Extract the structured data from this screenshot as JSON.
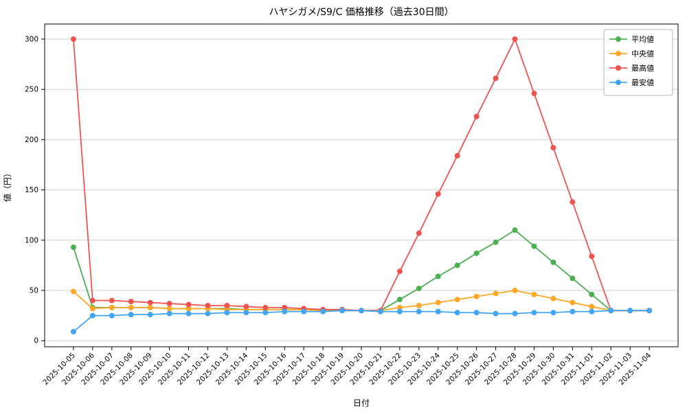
{
  "chart_data": {
    "type": "line",
    "title": "ハヤシガメ/S9/C 価格推移（過去30日間）",
    "xlabel": "日付",
    "ylabel": "値（円）",
    "x": [
      "2025-10-05",
      "2025-10-06",
      "2025-10-07",
      "2025-10-08",
      "2025-10-09",
      "2025-10-10",
      "2025-10-11",
      "2025-10-12",
      "2025-10-13",
      "2025-10-14",
      "2025-10-15",
      "2025-10-16",
      "2025-10-17",
      "2025-10-18",
      "2025-10-19",
      "2025-10-20",
      "2025-10-21",
      "2025-10-22",
      "2025-10-23",
      "2025-10-24",
      "2025-10-25",
      "2025-10-26",
      "2025-10-27",
      "2025-10-28",
      "2025-10-29",
      "2025-10-30",
      "2025-10-31",
      "2025-11-01",
      "2025-11-02",
      "2025-11-03",
      "2025-11-04"
    ],
    "ylim": [
      -6,
      315
    ],
    "yticks": [
      0,
      50,
      100,
      150,
      200,
      250,
      300
    ],
    "grid": "horizontal",
    "legend_position": "upper-right",
    "series": [
      {
        "name": "平均値",
        "color": "#4caf50",
        "values": [
          93,
          33,
          33,
          33,
          33,
          32,
          32,
          32,
          32,
          31,
          31,
          31,
          31,
          30,
          30,
          30,
          30,
          41,
          52,
          64,
          75,
          87,
          98,
          110,
          94,
          78,
          62,
          46,
          30,
          30,
          30
        ]
      },
      {
        "name": "中央値",
        "color": "#ffa726",
        "values": [
          49,
          32,
          33,
          33,
          33,
          32,
          32,
          32,
          31,
          31,
          31,
          31,
          31,
          30,
          30,
          30,
          30,
          33,
          35,
          38,
          41,
          44,
          47,
          50,
          46,
          42,
          38,
          34,
          30,
          30,
          30
        ]
      },
      {
        "name": "最高値",
        "color": "#ef5350",
        "values": [
          300,
          40,
          40,
          39,
          38,
          37,
          36,
          35,
          35,
          34,
          33,
          33,
          32,
          31,
          31,
          30,
          30,
          69,
          107,
          146,
          184,
          223,
          261,
          300,
          246,
          192,
          138,
          84,
          30,
          30,
          30
        ]
      },
      {
        "name": "最安値",
        "color": "#42a5f5",
        "values": [
          9,
          25,
          25,
          26,
          26,
          27,
          27,
          27,
          28,
          28,
          28,
          29,
          29,
          29,
          30,
          30,
          29,
          29,
          29,
          29,
          28,
          28,
          27,
          27,
          28,
          28,
          29,
          29,
          30,
          30,
          30
        ]
      }
    ]
  }
}
